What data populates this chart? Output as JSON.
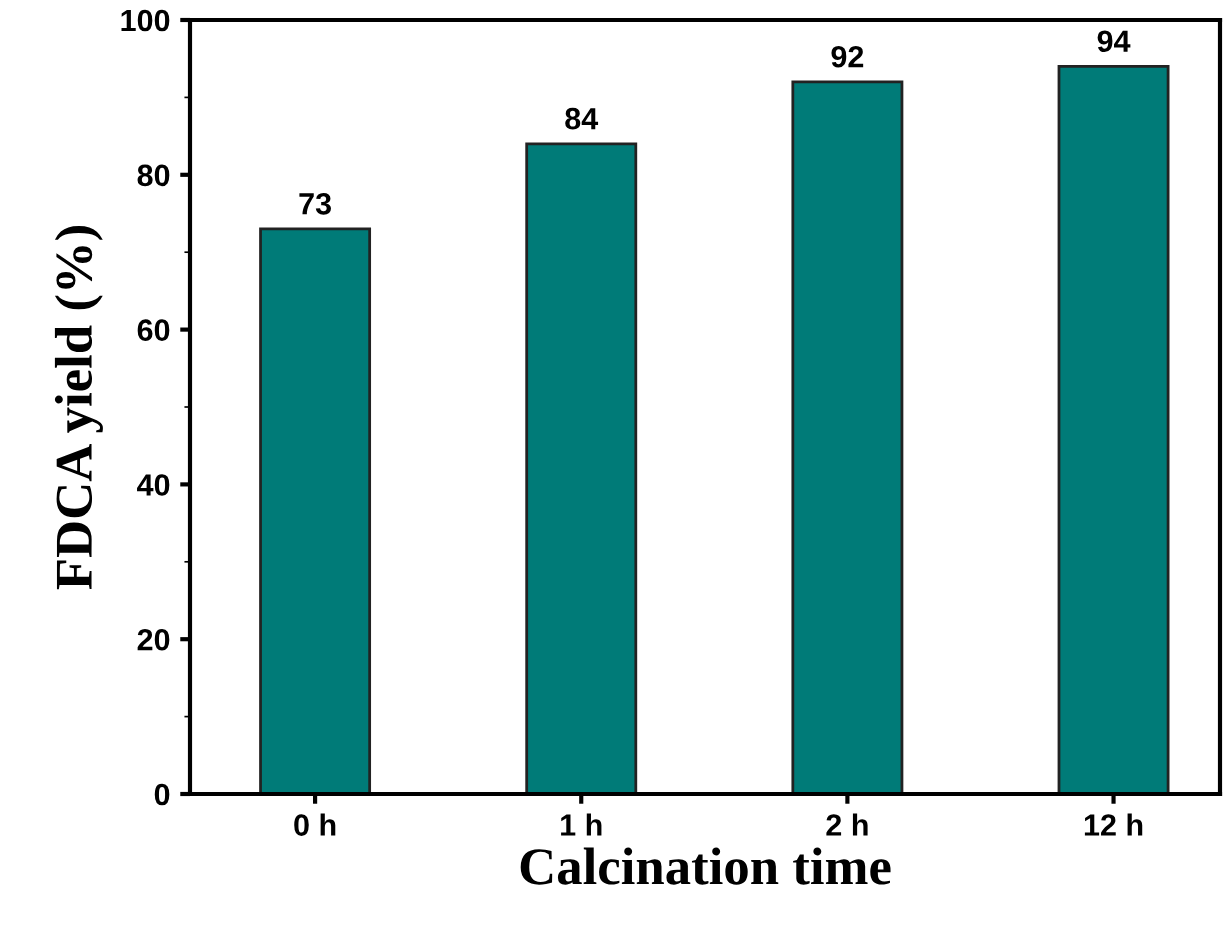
{
  "chart_data": {
    "type": "bar",
    "xlabel": "Calcination time",
    "ylabel": "FDCA yield (%)",
    "categories": [
      "0 h",
      "1 h",
      "2 h",
      "12 h"
    ],
    "values": [
      73,
      84,
      92,
      94
    ],
    "color": "#007b78",
    "ylim": [
      0,
      100
    ],
    "yticks": [
      0,
      20,
      40,
      60,
      80,
      100
    ],
    "data_labels": true,
    "grid": false,
    "legend": false
  }
}
